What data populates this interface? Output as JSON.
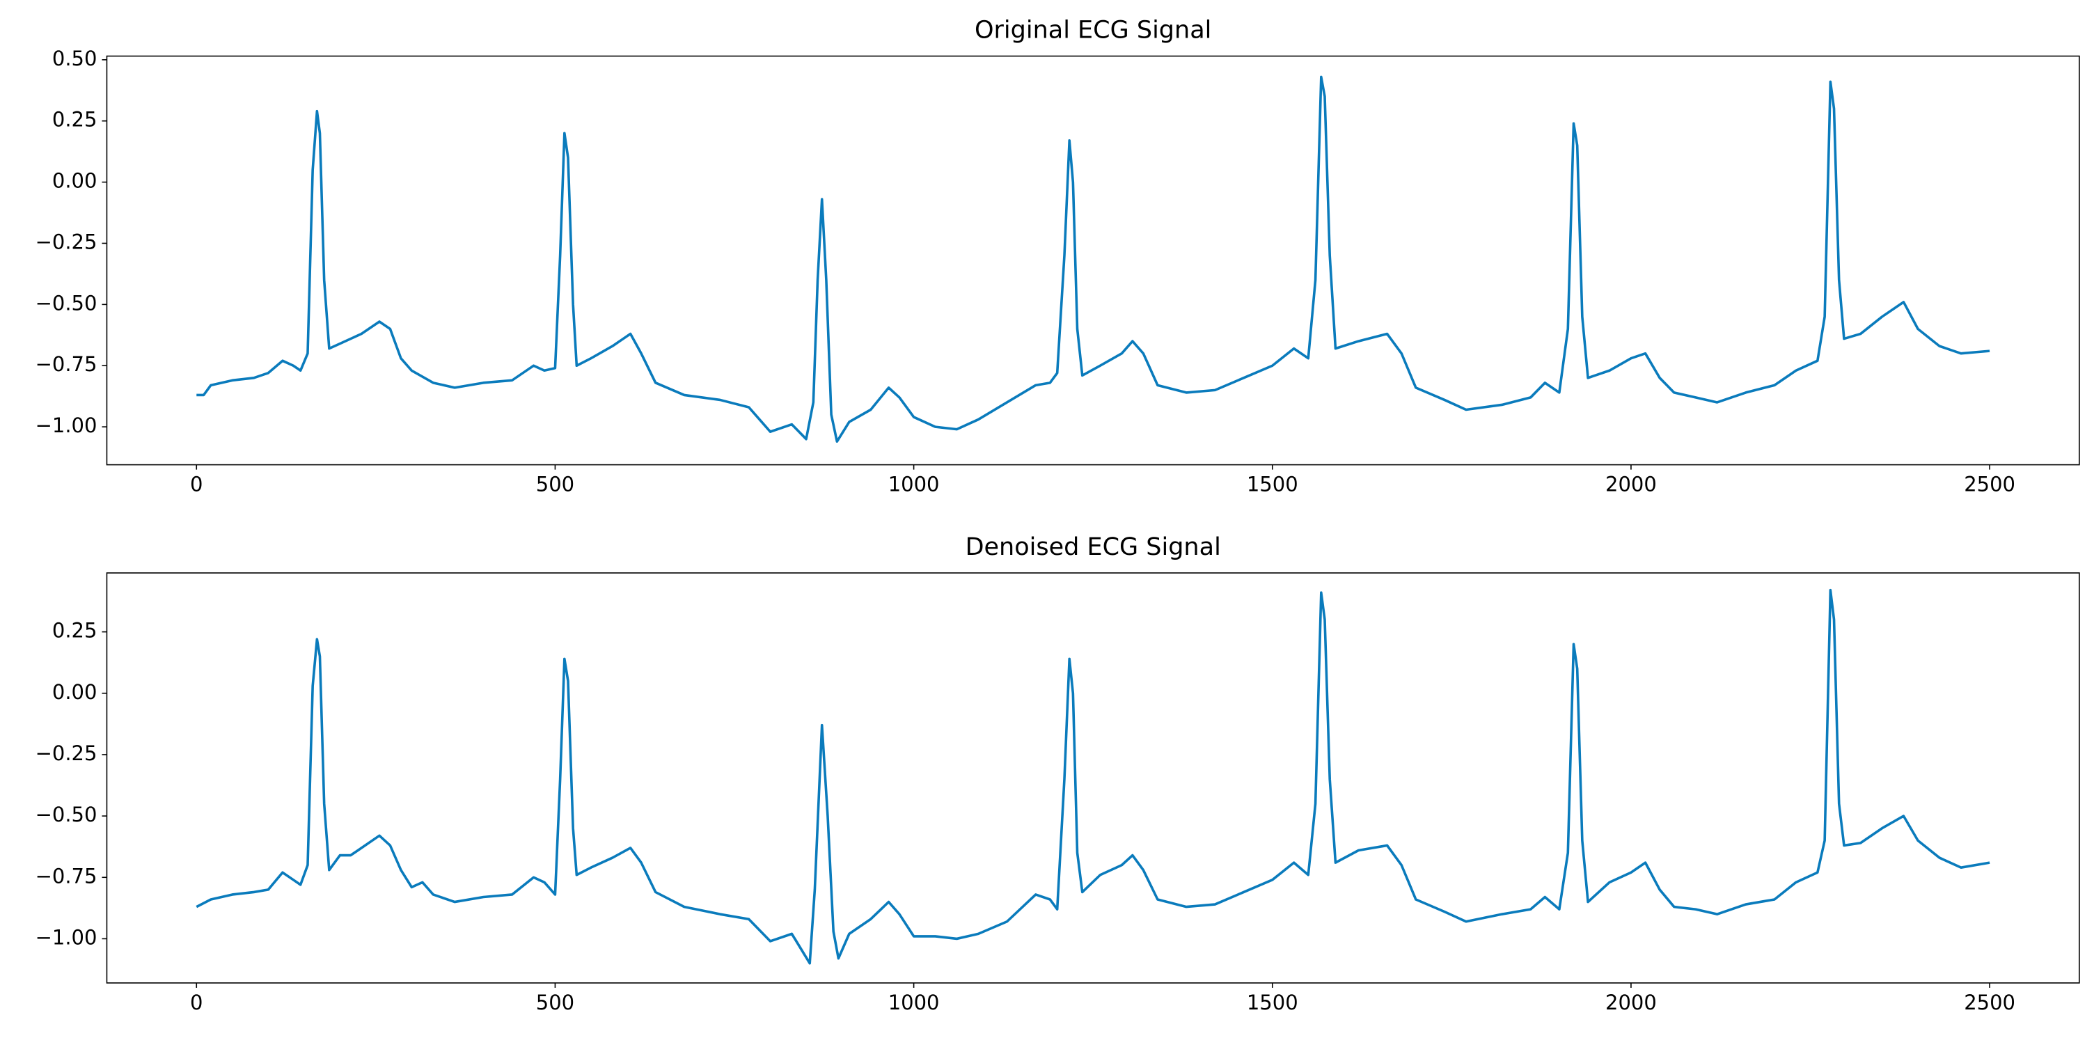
{
  "chart_data": [
    {
      "type": "line",
      "title": "Original ECG Signal",
      "color": "#0a7bbc",
      "x": [
        0,
        10,
        20,
        50,
        80,
        100,
        120,
        135,
        145,
        155,
        162,
        168,
        172,
        178,
        185,
        200,
        230,
        255,
        270,
        285,
        300,
        330,
        360,
        400,
        440,
        470,
        485,
        500,
        507,
        513,
        518,
        525,
        530,
        550,
        580,
        605,
        620,
        640,
        680,
        730,
        770,
        800,
        830,
        850,
        860,
        866,
        872,
        878,
        885,
        893,
        910,
        940,
        965,
        980,
        1000,
        1030,
        1060,
        1090,
        1130,
        1170,
        1190,
        1200,
        1210,
        1217,
        1222,
        1228,
        1235,
        1260,
        1290,
        1305,
        1320,
        1340,
        1380,
        1420,
        1460,
        1500,
        1530,
        1550,
        1560,
        1568,
        1573,
        1580,
        1588,
        1620,
        1660,
        1680,
        1700,
        1740,
        1770,
        1820,
        1860,
        1880,
        1900,
        1912,
        1920,
        1925,
        1932,
        1940,
        1970,
        2000,
        2020,
        2040,
        2060,
        2090,
        2120,
        2160,
        2200,
        2230,
        2260,
        2270,
        2278,
        2283,
        2290,
        2297,
        2320,
        2350,
        2380,
        2400,
        2430,
        2460,
        2500
      ],
      "values": [
        -0.87,
        -0.87,
        -0.83,
        -0.81,
        -0.8,
        -0.78,
        -0.73,
        -0.75,
        -0.77,
        -0.7,
        0.05,
        0.29,
        0.2,
        -0.4,
        -0.68,
        -0.66,
        -0.62,
        -0.57,
        -0.6,
        -0.72,
        -0.77,
        -0.82,
        -0.84,
        -0.82,
        -0.81,
        -0.75,
        -0.77,
        -0.76,
        -0.3,
        0.2,
        0.1,
        -0.5,
        -0.75,
        -0.72,
        -0.67,
        -0.62,
        -0.7,
        -0.82,
        -0.87,
        -0.89,
        -0.92,
        -1.02,
        -0.99,
        -1.05,
        -0.9,
        -0.4,
        -0.07,
        -0.4,
        -0.95,
        -1.06,
        -0.98,
        -0.93,
        -0.84,
        -0.88,
        -0.96,
        -1.0,
        -1.01,
        -0.97,
        -0.9,
        -0.83,
        -0.82,
        -0.78,
        -0.3,
        0.17,
        0.0,
        -0.6,
        -0.79,
        -0.75,
        -0.7,
        -0.65,
        -0.7,
        -0.83,
        -0.86,
        -0.85,
        -0.8,
        -0.75,
        -0.68,
        -0.72,
        -0.4,
        0.43,
        0.35,
        -0.3,
        -0.68,
        -0.65,
        -0.62,
        -0.7,
        -0.84,
        -0.89,
        -0.93,
        -0.91,
        -0.88,
        -0.82,
        -0.86,
        -0.6,
        0.24,
        0.15,
        -0.55,
        -0.8,
        -0.77,
        -0.72,
        -0.7,
        -0.8,
        -0.86,
        -0.88,
        -0.9,
        -0.86,
        -0.83,
        -0.77,
        -0.73,
        -0.55,
        0.41,
        0.3,
        -0.4,
        -0.64,
        -0.62,
        -0.55,
        -0.49,
        -0.6,
        -0.67,
        -0.7,
        -0.69
      ],
      "xlim": [
        -125,
        2625
      ],
      "ylim": [
        -1.155,
        0.515
      ],
      "xticks": [
        0,
        500,
        1000,
        1500,
        2000,
        2500
      ],
      "yticks": [
        {
          "value": 0.5,
          "label": "0.50"
        },
        0.25,
        {
          "value": 0,
          "label": "0.00"
        },
        {
          "value": -0.25,
          "label": "−0.25"
        },
        {
          "value": -0.5,
          "label": "−0.50"
        },
        {
          "value": -0.75,
          "label": "−0.75"
        },
        {
          "value": -1,
          "label": "−1.00"
        }
      ]
    },
    {
      "type": "line",
      "title": "Denoised ECG Signal",
      "color": "#0a7bbc",
      "x": [
        0,
        20,
        50,
        80,
        100,
        120,
        135,
        145,
        155,
        162,
        168,
        172,
        178,
        185,
        200,
        215,
        230,
        255,
        270,
        285,
        300,
        315,
        330,
        360,
        400,
        440,
        470,
        485,
        500,
        507,
        513,
        518,
        525,
        530,
        550,
        580,
        605,
        620,
        640,
        680,
        730,
        770,
        800,
        830,
        855,
        862,
        872,
        880,
        888,
        895,
        910,
        940,
        965,
        980,
        1000,
        1030,
        1060,
        1090,
        1130,
        1170,
        1190,
        1200,
        1210,
        1217,
        1222,
        1228,
        1235,
        1260,
        1290,
        1305,
        1320,
        1340,
        1380,
        1420,
        1460,
        1500,
        1530,
        1550,
        1560,
        1568,
        1573,
        1580,
        1588,
        1620,
        1660,
        1680,
        1700,
        1740,
        1770,
        1820,
        1860,
        1880,
        1900,
        1912,
        1920,
        1925,
        1932,
        1940,
        1970,
        2000,
        2020,
        2040,
        2060,
        2090,
        2120,
        2160,
        2200,
        2230,
        2260,
        2270,
        2278,
        2283,
        2290,
        2297,
        2320,
        2350,
        2380,
        2400,
        2430,
        2460,
        2500
      ],
      "values": [
        -0.87,
        -0.84,
        -0.82,
        -0.81,
        -0.8,
        -0.73,
        -0.76,
        -0.78,
        -0.7,
        0.03,
        0.22,
        0.15,
        -0.45,
        -0.72,
        -0.66,
        -0.66,
        -0.63,
        -0.58,
        -0.62,
        -0.72,
        -0.79,
        -0.77,
        -0.82,
        -0.85,
        -0.83,
        -0.82,
        -0.75,
        -0.77,
        -0.82,
        -0.35,
        0.14,
        0.05,
        -0.55,
        -0.74,
        -0.71,
        -0.67,
        -0.63,
        -0.69,
        -0.81,
        -0.87,
        -0.9,
        -0.92,
        -1.01,
        -0.98,
        -1.1,
        -0.8,
        -0.13,
        -0.5,
        -0.97,
        -1.08,
        -0.98,
        -0.92,
        -0.85,
        -0.9,
        -0.99,
        -0.99,
        -1.0,
        -0.98,
        -0.93,
        -0.82,
        -0.84,
        -0.88,
        -0.35,
        0.14,
        0.0,
        -0.65,
        -0.81,
        -0.74,
        -0.7,
        -0.66,
        -0.72,
        -0.84,
        -0.87,
        -0.86,
        -0.81,
        -0.76,
        -0.69,
        -0.74,
        -0.45,
        0.41,
        0.3,
        -0.35,
        -0.69,
        -0.64,
        -0.62,
        -0.7,
        -0.84,
        -0.89,
        -0.93,
        -0.9,
        -0.88,
        -0.83,
        -0.88,
        -0.65,
        0.2,
        0.1,
        -0.6,
        -0.85,
        -0.77,
        -0.73,
        -0.69,
        -0.8,
        -0.87,
        -0.88,
        -0.9,
        -0.86,
        -0.84,
        -0.77,
        -0.73,
        -0.6,
        0.42,
        0.3,
        -0.45,
        -0.62,
        -0.61,
        -0.55,
        -0.5,
        -0.6,
        -0.67,
        -0.71,
        -0.69
      ],
      "xlim": [
        -125,
        2625
      ],
      "ylim": [
        -1.18,
        0.49
      ],
      "xticks": [
        0,
        500,
        1000,
        1500,
        2000,
        2500
      ],
      "yticks": [
        0.25,
        {
          "value": 0,
          "label": "0.00"
        },
        {
          "value": -0.25,
          "label": "−0.25"
        },
        {
          "value": -0.5,
          "label": "−0.50"
        },
        {
          "value": -0.75,
          "label": "−0.75"
        },
        {
          "value": -1,
          "label": "−1.00"
        }
      ]
    }
  ]
}
